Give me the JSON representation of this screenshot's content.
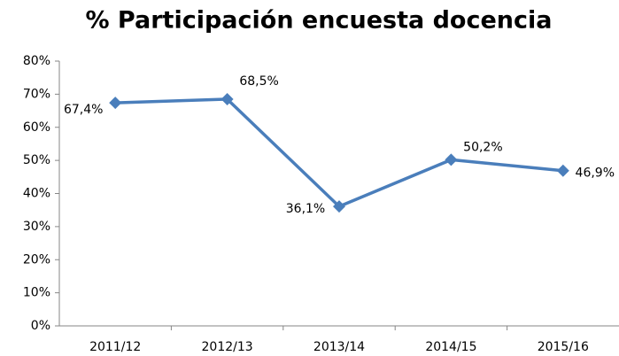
{
  "chart_data": {
    "type": "line",
    "title": "% Participación encuesta docencia",
    "categories": [
      "2011/12",
      "2012/13",
      "2013/14",
      "2014/15",
      "2015/16"
    ],
    "series": [
      {
        "name": "Participación",
        "color": "#4a7ebb",
        "values": [
          67.4,
          68.5,
          36.1,
          50.2,
          46.9
        ],
        "value_labels": [
          "67,4%",
          "68,5%",
          "36,1%",
          "50,2%",
          "46,9%"
        ]
      }
    ],
    "ylim": [
      0,
      80
    ],
    "yticks": [
      {
        "value": 0,
        "label": "0%"
      },
      {
        "value": 10,
        "label": "10%"
      },
      {
        "value": 20,
        "label": "20%"
      },
      {
        "value": 30,
        "label": "30%"
      },
      {
        "value": 40,
        "label": "40%"
      },
      {
        "value": 50,
        "label": "50%"
      },
      {
        "value": 60,
        "label": "60%"
      },
      {
        "value": 70,
        "label": "70%"
      },
      {
        "value": 80,
        "label": "80%"
      }
    ],
    "grid": false
  }
}
